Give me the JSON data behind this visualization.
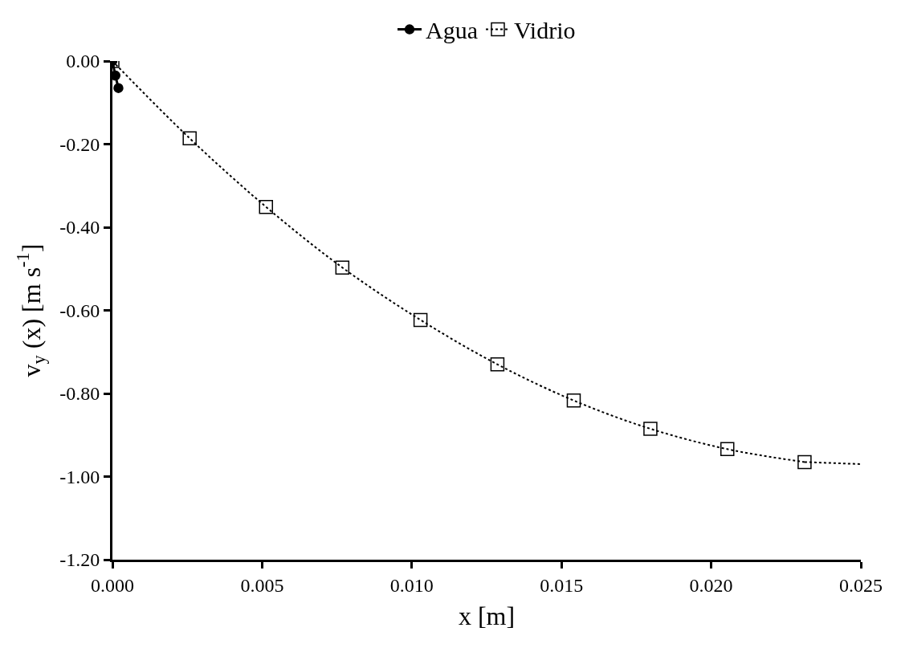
{
  "chart_data": {
    "type": "line",
    "xlabel": "x [m]",
    "ylabel": "v$_{y}$ (x) [m s$^{-1}$]",
    "series": [
      {
        "name": "Agua",
        "color": "#000000",
        "marker": "circle",
        "line_style": "solid",
        "x": [
          0,
          0.0001,
          0.0002
        ],
        "values": [
          0,
          -0.035,
          -0.065
        ]
      },
      {
        "name": "Vidrio",
        "color": "#000000",
        "marker": "square",
        "line_style": "dotted",
        "x": [
          0,
          0.00258,
          0.00513,
          0.00768,
          0.01029,
          0.01286,
          0.01541,
          0.01797,
          0.02054,
          0.02312
        ],
        "values": [
          0,
          -0.186,
          -0.351,
          -0.497,
          -0.623,
          -0.73,
          -0.817,
          -0.885,
          -0.934,
          -0.965
        ]
      },
      {
        "color": "#000000",
        "marker": "none",
        "line_style": "dotted",
        "x": [
          0.02312,
          0.025
        ],
        "values": [
          -0.965,
          -0.97
        ]
      }
    ],
    "xlim": [
      0,
      0.025
    ],
    "xticks": [
      {
        "value": 0,
        "label": "0.000"
      },
      {
        "value": 0.005,
        "label": "0.005"
      },
      {
        "value": 0.01,
        "label": "0.010"
      },
      {
        "value": 0.015,
        "label": "0.015"
      },
      {
        "value": 0.02,
        "label": "0.020"
      },
      {
        "value": 0.025,
        "label": "0.025"
      }
    ],
    "ylim": [
      -1.2,
      0
    ],
    "yticks": [
      {
        "value": 0,
        "label": "0.00"
      },
      {
        "value": -0.2,
        "label": "-0.20"
      },
      {
        "value": -0.4,
        "label": "-0.40"
      },
      {
        "value": -0.6,
        "label": "-0.60"
      },
      {
        "value": -0.8,
        "label": "-0.80"
      },
      {
        "value": -1.0,
        "label": "-1.00"
      },
      {
        "value": -1.2,
        "label": "-1.20"
      }
    ],
    "legend": "top"
  }
}
